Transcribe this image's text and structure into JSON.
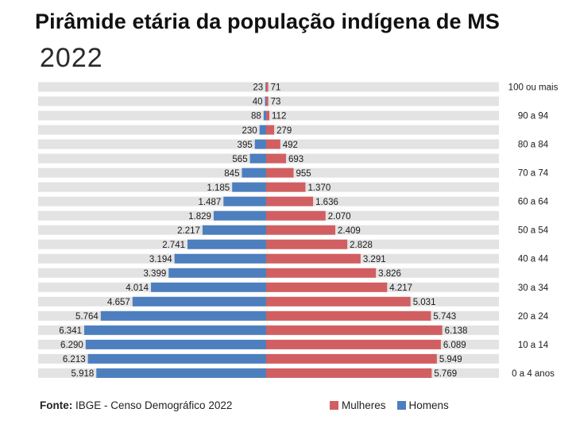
{
  "header": {
    "title": "Pirâmide etária da população indígena de MS",
    "subtitle": "2022"
  },
  "source": {
    "label": "Fonte:",
    "text": " IBGE - Censo Demográfico 2022"
  },
  "legend": {
    "women_label": "Mulheres",
    "men_label": "Homens"
  },
  "colors": {
    "women": "#d15f61",
    "men": "#4d7fbf",
    "row_background": "#e3e3e3"
  },
  "chart_data": {
    "type": "bar",
    "orientation": "horizontal-diverging",
    "title": "Pirâmide etária da população indígena de MS",
    "subtitle": "2022",
    "age_labels": [
      "100 ou mais",
      "90 a 94",
      "80 a 84",
      "70 a 74",
      "60 a 64",
      "50 a 54",
      "40 a 44",
      "30 a 34",
      "20 a 24",
      "10 a 14",
      "0 a 4 anos"
    ],
    "series": [
      {
        "name": "Homens",
        "side": "left",
        "values": [
          23,
          40,
          88,
          230,
          395,
          565,
          845,
          1185,
          1487,
          1829,
          2217,
          2741,
          3194,
          3399,
          4014,
          4657,
          5764,
          6341,
          6290,
          6213,
          5918
        ],
        "display": [
          "23",
          "40",
          "88",
          "230",
          "395",
          "565",
          "845",
          "1.185",
          "1.487",
          "1.829",
          "2.217",
          "2.741",
          "3.194",
          "3.399",
          "4.014",
          "4.657",
          "5.764",
          "6.341",
          "6.290",
          "6.213",
          "5.918"
        ]
      },
      {
        "name": "Mulheres",
        "side": "right",
        "values": [
          71,
          73,
          112,
          279,
          492,
          693,
          955,
          1370,
          1636,
          2070,
          2409,
          2828,
          3291,
          3826,
          4217,
          5031,
          5743,
          6138,
          6089,
          5949,
          5769
        ],
        "display": [
          "71",
          "73",
          "112",
          "279",
          "492",
          "693",
          "955",
          "1.370",
          "1.636",
          "2.070",
          "2.409",
          "2.828",
          "3.291",
          "3.826",
          "4.217",
          "5.031",
          "5.743",
          "6.138",
          "6.089",
          "5.949",
          "5.769"
        ]
      }
    ],
    "xlim": [
      0,
      8000
    ],
    "legend_position": "bottom-right"
  }
}
